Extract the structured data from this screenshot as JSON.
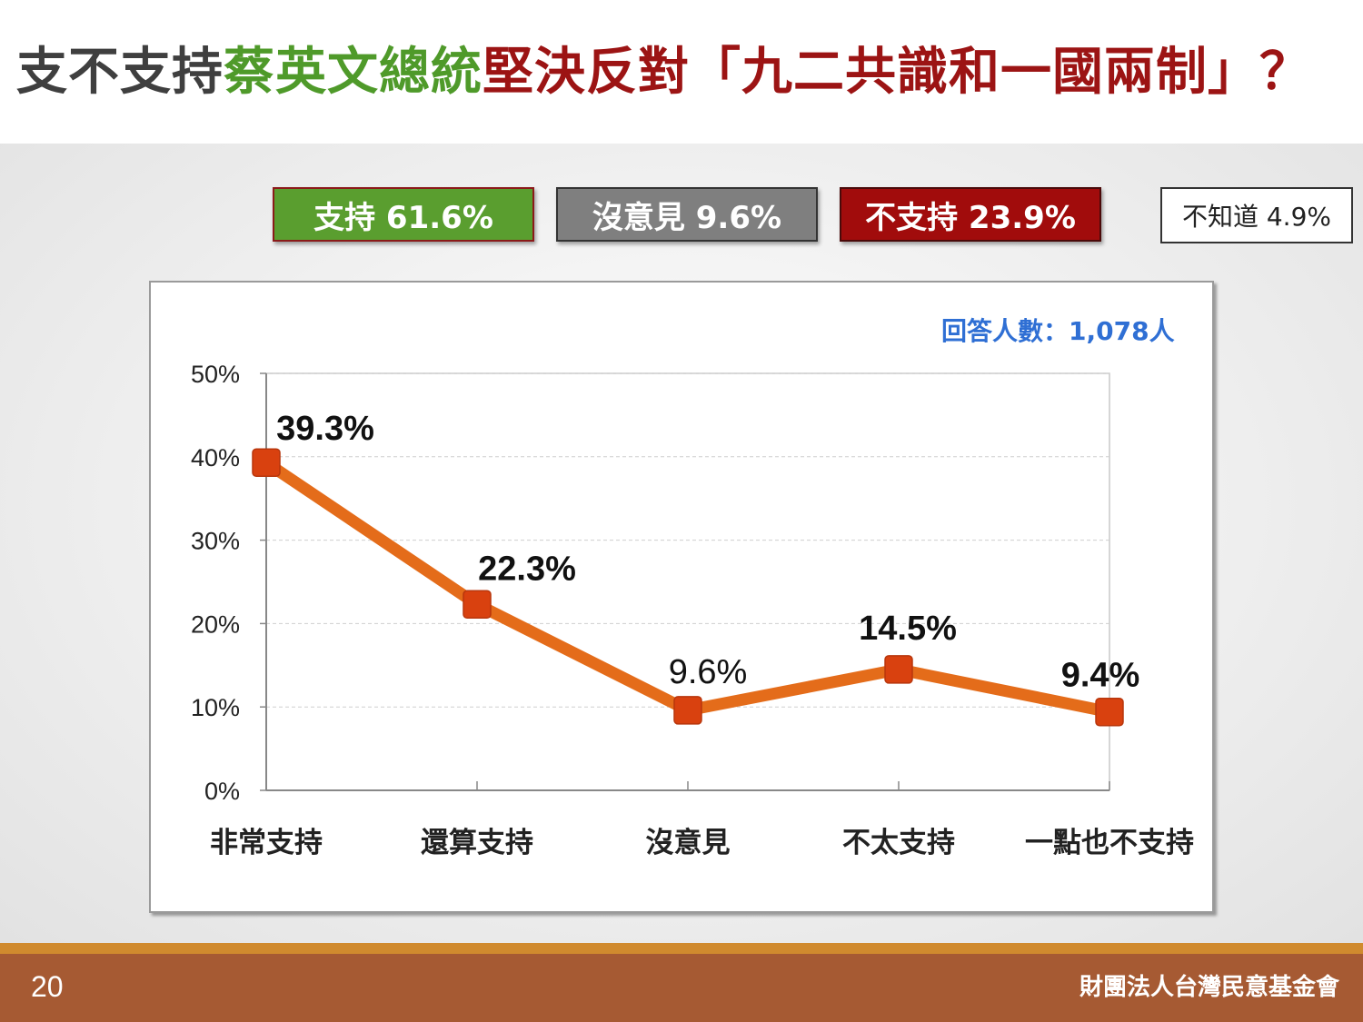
{
  "title": {
    "part1": "支不支持",
    "part2": "蔡英文總統",
    "part3": "堅決反對「九二共識和一國兩制」？"
  },
  "summary": {
    "support": "支持 61.6%",
    "neutral": "沒意見 9.6%",
    "oppose": "不支持 23.9%",
    "unknown": "不知道 4.9%"
  },
  "sample_note": "回答人數：1,078人",
  "footer": {
    "page_number": "20",
    "organization": "財團法人台灣民意基金會"
  },
  "colors": {
    "line": "#e46c1a",
    "marker": "#d9410f",
    "support": "#5a9e2f",
    "neutral": "#7f7f7f",
    "oppose": "#a10c0c"
  },
  "chart_data": {
    "type": "line",
    "categories": [
      "非常支持",
      "還算支持",
      "沒意見",
      "不太支持",
      "一點也不支持"
    ],
    "values": [
      39.3,
      22.3,
      9.6,
      14.5,
      9.4
    ],
    "data_labels": [
      "39.3%",
      "22.3%",
      "9.6%",
      "14.5%",
      "9.4%"
    ],
    "yticks": [
      "0%",
      "10%",
      "20%",
      "30%",
      "40%",
      "50%"
    ],
    "ylim": [
      0,
      50
    ],
    "grid": true,
    "xlabel": "",
    "ylabel": ""
  }
}
